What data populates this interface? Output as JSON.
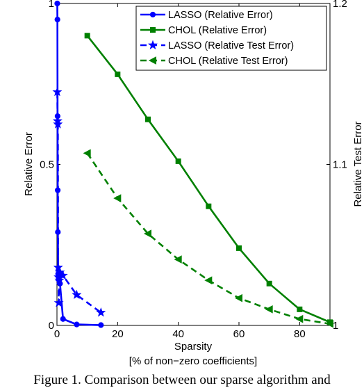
{
  "chart_data": {
    "type": "line",
    "xlabel": "Sparsity",
    "xlabel2": "[% of non−zero coefficients]",
    "ylabel": "Relative Error",
    "ylabel_right": "Relative Test Error",
    "xlim": [
      0,
      90
    ],
    "ylim": [
      0,
      1
    ],
    "ylim_right": [
      1,
      1.2
    ],
    "xticks": [
      "0",
      "20",
      "40",
      "60",
      "80"
    ],
    "xtick_values": [
      0,
      20,
      40,
      60,
      80
    ],
    "yticks": [
      "0",
      "0.5",
      "1"
    ],
    "ytick_values": [
      0,
      0.5,
      1
    ],
    "yticks_right": [
      "1",
      "1.1",
      "1.2"
    ],
    "ytick_right_values": [
      1,
      1.1,
      1.2
    ],
    "grid": false,
    "legend_position": "top-right",
    "series": [
      {
        "name": "LASSO (Relative Error)",
        "axis": "left",
        "color": "#0000ff",
        "line": "solid",
        "marker": "circle",
        "x": [
          0.1,
          0.15,
          0.2,
          0.25,
          0.3,
          0.4,
          0.5,
          0.7,
          1.0,
          2.0,
          6.5,
          14.5
        ],
        "y": [
          1.0,
          0.95,
          0.65,
          0.42,
          0.29,
          0.16,
          0.15,
          0.14,
          0.13,
          0.02,
          0.003,
          0.001
        ]
      },
      {
        "name": "CHOL (Relative Error)",
        "axis": "left",
        "color": "#008000",
        "line": "solid",
        "marker": "square",
        "x": [
          10,
          20,
          30,
          40,
          50,
          60,
          70,
          80,
          90
        ],
        "y": [
          0.9,
          0.78,
          0.64,
          0.51,
          0.37,
          0.24,
          0.13,
          0.05,
          0.01
        ]
      },
      {
        "name": "LASSO (Relative Test Error)",
        "axis": "right",
        "color": "#0000ff",
        "line": "dashed",
        "marker": "star",
        "x": [
          0.1,
          0.2,
          0.3,
          0.4,
          0.5,
          0.6,
          0.8,
          1.0,
          2.0,
          6.5,
          14.5
        ],
        "y": [
          1.145,
          1.127,
          1.125,
          1.036,
          1.03,
          1.014,
          1.028,
          1.033,
          1.031,
          1.019,
          1.008
        ]
      },
      {
        "name": "CHOL (Relative Test Error)",
        "axis": "right",
        "color": "#008000",
        "line": "dashed",
        "marker": "triangle-left",
        "x": [
          10,
          20,
          30,
          40,
          50,
          60,
          70,
          80,
          90
        ],
        "y": [
          1.107,
          1.079,
          1.057,
          1.041,
          1.028,
          1.017,
          1.01,
          1.004,
          1.001
        ]
      }
    ]
  },
  "caption": "Figure 1. Comparison between our sparse algorithm and"
}
